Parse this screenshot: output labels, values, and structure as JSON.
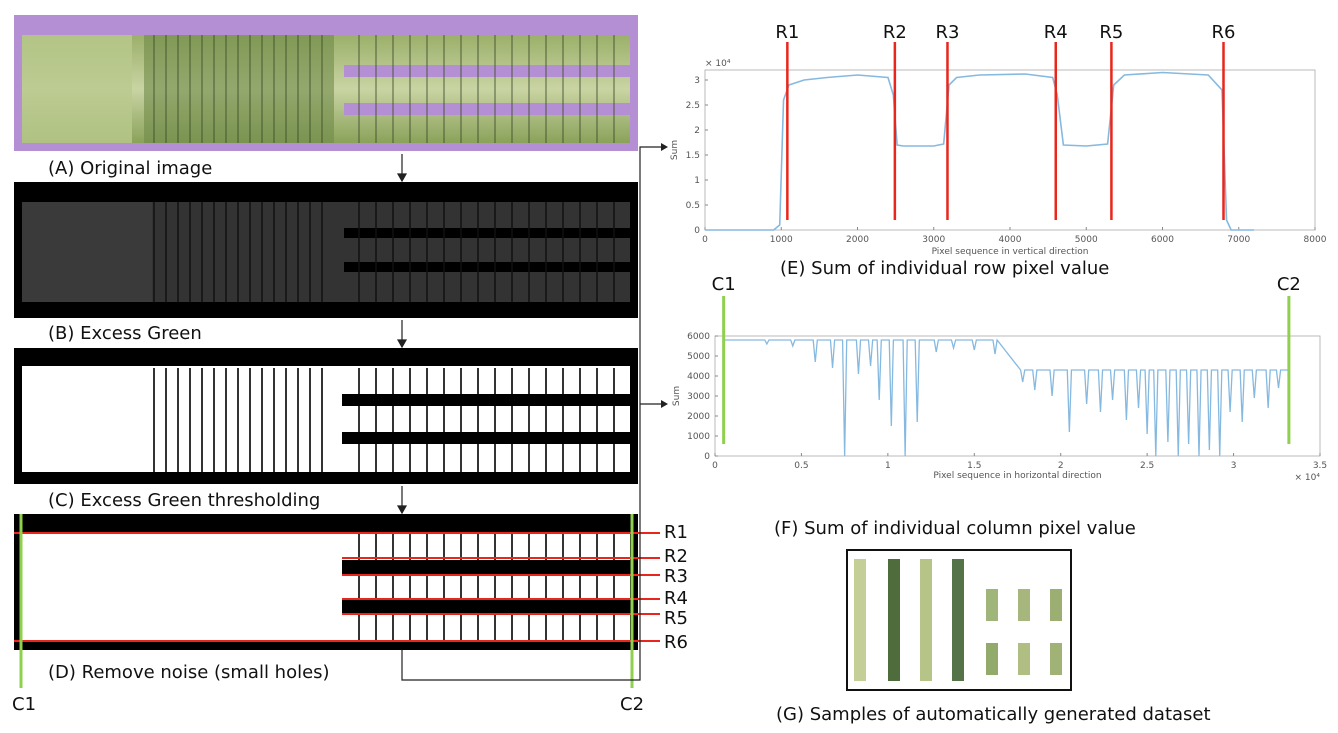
{
  "captions": {
    "a": "(A) Original image",
    "b": "(B) Excess Green",
    "c": "(C) Excess Green thresholding",
    "d": "(D) Remove noise (small holes)",
    "e": "(E) Sum of individual row pixel value",
    "f": "(F) Sum of individual column pixel value",
    "g": "(G) Samples of automatically generated dataset"
  },
  "row_labels": [
    "R1",
    "R2",
    "R3",
    "R4",
    "R5",
    "R6"
  ],
  "col_labels": [
    "C1",
    "C2"
  ],
  "colors": {
    "border_purple": "#b48fd3",
    "crop_green": "#7d9a52",
    "marker_red": "#e8261c",
    "marker_green": "#8fd14f",
    "plot_line": "#86b9e0"
  },
  "chart_data": [
    {
      "type": "line",
      "id": "E",
      "title": "",
      "xlabel": "Pixel sequence in vertical direction",
      "ylabel": "Sum",
      "y_exponent": "× 10⁴",
      "xlim": [
        0,
        8000
      ],
      "ylim": [
        0,
        3.2
      ],
      "xticks": [
        0,
        1000,
        2000,
        3000,
        4000,
        5000,
        6000,
        7000,
        8000
      ],
      "yticks": [
        0,
        0.5,
        1,
        1.5,
        2,
        2.5,
        3
      ],
      "series": [
        {
          "x": [
            0,
            900,
            980,
            1030,
            1100,
            1300,
            1600,
            2000,
            2400,
            2470,
            2520,
            2600,
            3000,
            3130,
            3200,
            3300,
            3600,
            4200,
            4560,
            4620,
            4700,
            5000,
            5280,
            5360,
            5500,
            6000,
            6600,
            6780,
            6840,
            6900,
            7200
          ],
          "y": [
            0,
            0,
            0.1,
            2.6,
            2.9,
            3.0,
            3.05,
            3.1,
            3.05,
            2.7,
            1.7,
            1.68,
            1.68,
            1.72,
            2.9,
            3.05,
            3.1,
            3.12,
            3.05,
            2.7,
            1.7,
            1.68,
            1.72,
            2.9,
            3.1,
            3.15,
            3.1,
            2.8,
            0.2,
            0,
            0
          ]
        }
      ],
      "markers": [
        {
          "label": "R1",
          "x": 1080
        },
        {
          "label": "R2",
          "x": 2490
        },
        {
          "label": "R3",
          "x": 3180
        },
        {
          "label": "R4",
          "x": 4600
        },
        {
          "label": "R5",
          "x": 5330
        },
        {
          "label": "R6",
          "x": 6800
        }
      ]
    },
    {
      "type": "line",
      "id": "F",
      "title": "",
      "xlabel": "Pixel sequence in horizontal direction",
      "ylabel": "Sum",
      "x_exponent": "× 10⁴",
      "xlim": [
        0,
        3.5
      ],
      "ylim": [
        0,
        6000
      ],
      "xticks": [
        0,
        0.5,
        1,
        1.5,
        2,
        2.5,
        3,
        3.5
      ],
      "yticks": [
        0,
        1000,
        2000,
        3000,
        4000,
        5000,
        6000
      ],
      "base_level_left": 5800,
      "base_level_right": 4300,
      "step_x": 1.74,
      "dips": [
        [
          0.3,
          5600
        ],
        [
          0.45,
          5500
        ],
        [
          0.58,
          4700
        ],
        [
          0.68,
          4400
        ],
        [
          0.75,
          0
        ],
        [
          0.83,
          4100
        ],
        [
          0.9,
          4500
        ],
        [
          0.95,
          2800
        ],
        [
          1.02,
          1500
        ],
        [
          1.1,
          0
        ],
        [
          1.17,
          1700
        ],
        [
          1.28,
          5200
        ],
        [
          1.38,
          5400
        ],
        [
          1.5,
          5300
        ],
        [
          1.62,
          5100
        ],
        [
          1.78,
          3700
        ],
        [
          1.85,
          3300
        ],
        [
          1.95,
          3000
        ],
        [
          2.05,
          1200
        ],
        [
          2.15,
          2600
        ],
        [
          2.23,
          2200
        ],
        [
          2.3,
          2800
        ],
        [
          2.38,
          1800
        ],
        [
          2.45,
          2400
        ],
        [
          2.5,
          1100
        ],
        [
          2.55,
          0
        ],
        [
          2.62,
          700
        ],
        [
          2.68,
          0
        ],
        [
          2.74,
          600
        ],
        [
          2.8,
          0
        ],
        [
          2.86,
          300
        ],
        [
          2.92,
          0
        ],
        [
          2.98,
          2200
        ],
        [
          3.05,
          1700
        ],
        [
          3.12,
          2900
        ],
        [
          3.2,
          2400
        ],
        [
          3.26,
          3400
        ]
      ],
      "markers": [
        {
          "label": "C1",
          "x": 0.05
        },
        {
          "label": "C2",
          "x": 3.32
        }
      ]
    }
  ]
}
